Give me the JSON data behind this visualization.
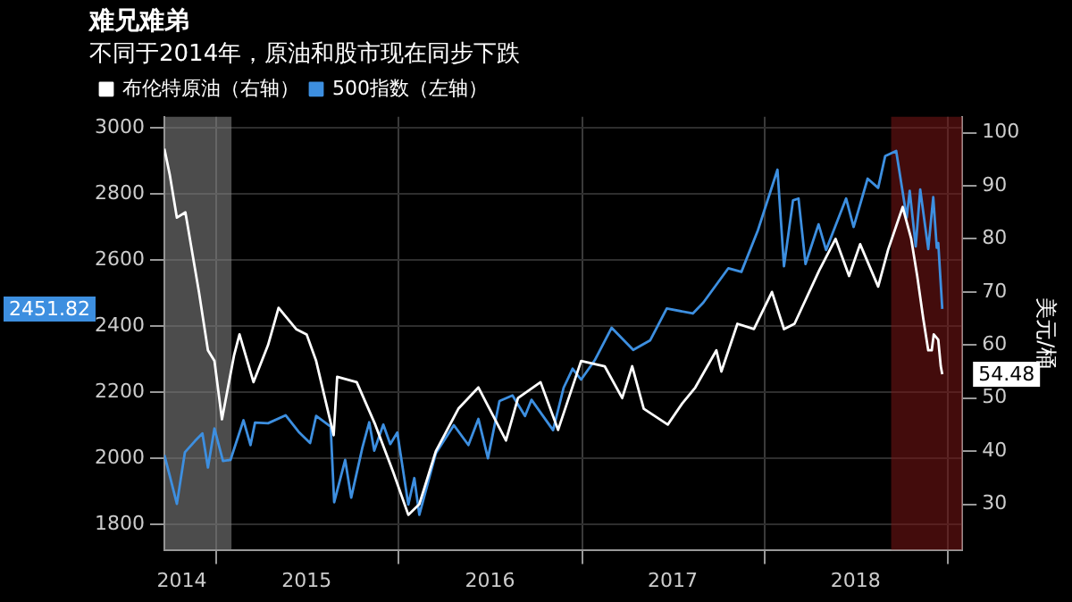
{
  "chart_data": {
    "type": "line",
    "title": "难兄难弟",
    "subtitle": "不同于2014年，原油和股市现在同步下跌",
    "y2label": "美元/桶",
    "xlim": [
      "2014-09-20",
      "2019-01-30"
    ],
    "xticks": [
      {
        "value": "2014-10-25",
        "label": "2014"
      },
      {
        "value": "2015-01-01",
        "label": null
      },
      {
        "value": "2015-07-01",
        "label": "2015"
      },
      {
        "value": "2016-01-01",
        "label": null
      },
      {
        "value": "2016-07-01",
        "label": "2016"
      },
      {
        "value": "2017-01-01",
        "label": null
      },
      {
        "value": "2017-07-01",
        "label": "2017"
      },
      {
        "value": "2018-01-01",
        "label": null
      },
      {
        "value": "2018-07-01",
        "label": "2018"
      },
      {
        "value": "2019-01-01",
        "label": null
      }
    ],
    "ylim": [
      1723,
      3033
    ],
    "yticks": [
      1800,
      2000,
      2200,
      2400,
      2600,
      2800,
      3000
    ],
    "y2lim": [
      21.4,
      103
    ],
    "y2ticks": [
      30,
      40,
      50,
      60,
      70,
      80,
      90,
      100
    ],
    "grid": true,
    "legend": "top left",
    "marker": "none",
    "series": [
      {
        "name": "布伦特原油（右轴）",
        "color": "#ffffff",
        "axis": "y2",
        "x": [
          "2014-09-20",
          "2014-10-01",
          "2014-10-15",
          "2014-11-01",
          "2014-11-28",
          "2014-12-16",
          "2014-12-29",
          "2015-01-13",
          "2015-02-06",
          "2015-02-17",
          "2015-03-17",
          "2015-04-15",
          "2015-05-06",
          "2015-06-10",
          "2015-07-01",
          "2015-07-20",
          "2015-08-24",
          "2015-08-31",
          "2015-10-09",
          "2015-11-15",
          "2015-12-21",
          "2016-01-20",
          "2016-02-11",
          "2016-03-15",
          "2016-04-29",
          "2016-06-08",
          "2016-08-02",
          "2016-08-26",
          "2016-10-10",
          "2016-11-14",
          "2016-12-30",
          "2017-02-15",
          "2017-03-22",
          "2017-04-11",
          "2017-05-04",
          "2017-06-21",
          "2017-07-20",
          "2017-08-15",
          "2017-09-26",
          "2017-10-06",
          "2017-11-07",
          "2017-12-10",
          "2018-01-15",
          "2018-02-08",
          "2018-03-01",
          "2018-04-19",
          "2018-05-22",
          "2018-06-18",
          "2018-07-10",
          "2018-08-15",
          "2018-09-04",
          "2018-10-03",
          "2018-10-20",
          "2018-11-01",
          "2018-11-13",
          "2018-11-23",
          "2018-11-30",
          "2018-12-04",
          "2018-12-13",
          "2018-12-18",
          "2018-12-21"
        ],
        "values": [
          97,
          92,
          84,
          85,
          70,
          59,
          57,
          46,
          58,
          62,
          53,
          60,
          67,
          63,
          62,
          57,
          43,
          54,
          53,
          45,
          36,
          28,
          30,
          40,
          48,
          52,
          42,
          50,
          53,
          44,
          57,
          56,
          50,
          56,
          48,
          45,
          49,
          52,
          59,
          55,
          64,
          63,
          70,
          63,
          64,
          74,
          80,
          73,
          79,
          71,
          78,
          86,
          80,
          73,
          65,
          59,
          59,
          62,
          61,
          56,
          54.48
        ]
      },
      {
        "name": "500指数（左轴）",
        "color": "#3d8fe0",
        "axis": "y",
        "x": [
          "2014-09-20",
          "2014-10-01",
          "2014-10-15",
          "2014-10-31",
          "2014-11-20",
          "2014-12-05",
          "2014-12-16",
          "2014-12-29",
          "2015-01-15",
          "2015-01-30",
          "2015-02-25",
          "2015-03-11",
          "2015-03-20",
          "2015-04-15",
          "2015-05-20",
          "2015-06-15",
          "2015-07-08",
          "2015-07-20",
          "2015-08-18",
          "2015-08-25",
          "2015-09-16",
          "2015-09-28",
          "2015-10-20",
          "2015-11-03",
          "2015-11-13",
          "2015-12-01",
          "2015-12-15",
          "2015-12-29",
          "2016-01-20",
          "2016-02-01",
          "2016-02-11",
          "2016-03-15",
          "2016-04-20",
          "2016-05-19",
          "2016-06-08",
          "2016-06-27",
          "2016-07-20",
          "2016-08-15",
          "2016-09-09",
          "2016-09-22",
          "2016-11-04",
          "2016-11-25",
          "2016-12-13",
          "2016-12-30",
          "2017-01-26",
          "2017-03-01",
          "2017-04-13",
          "2017-05-17",
          "2017-06-19",
          "2017-08-10",
          "2017-08-31",
          "2017-10-20",
          "2017-11-15",
          "2017-12-18",
          "2018-01-26",
          "2018-02-08",
          "2018-02-26",
          "2018-03-09",
          "2018-03-23",
          "2018-04-18",
          "2018-05-03",
          "2018-06-12",
          "2018-06-27",
          "2018-07-25",
          "2018-08-15",
          "2018-08-29",
          "2018-09-20",
          "2018-10-11",
          "2018-10-17",
          "2018-10-29",
          "2018-11-07",
          "2018-11-23",
          "2018-12-03",
          "2018-12-10",
          "2018-12-13",
          "2018-12-21"
        ],
        "values": [
          2010,
          1946,
          1862,
          2018,
          2052,
          2075,
          1972,
          2090,
          1992,
          1995,
          2115,
          2040,
          2108,
          2106,
          2130,
          2080,
          2046,
          2128,
          2096,
          1867,
          1995,
          1881,
          2030,
          2109,
          2023,
          2102,
          2043,
          2078,
          1860,
          1940,
          1829,
          2015,
          2100,
          2040,
          2119,
          2000,
          2173,
          2190,
          2128,
          2177,
          2085,
          2213,
          2271,
          2238,
          2296,
          2395,
          2328,
          2357,
          2453,
          2438,
          2471,
          2575,
          2564,
          2690,
          2873,
          2581,
          2780,
          2786,
          2588,
          2708,
          2630,
          2786,
          2700,
          2846,
          2818,
          2914,
          2930,
          2728,
          2809,
          2641,
          2813,
          2633,
          2790,
          2637,
          2651,
          2451.82
        ]
      }
    ],
    "bands": [
      {
        "axis": "x",
        "from": "2014-09-20",
        "to": "2015-02-01",
        "color": "#8a8a8a"
      },
      {
        "axis": "x",
        "from": "2018-09-10",
        "to": "2019-01-30",
        "color": "#7a1515"
      }
    ],
    "annotations": [
      "54.48",
      "2451.82"
    ]
  }
}
